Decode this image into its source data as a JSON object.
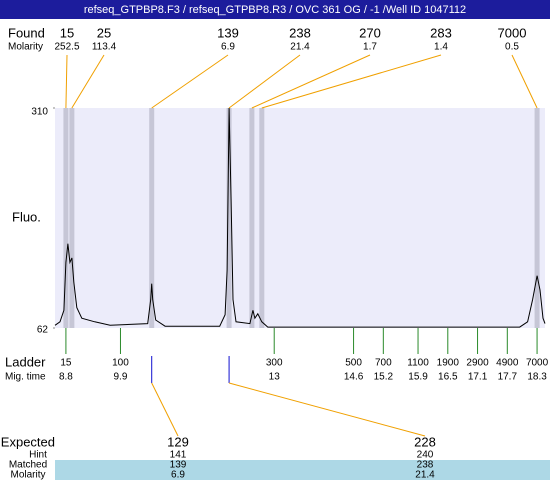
{
  "chart_data": {
    "type": "line",
    "title": "refseq_GTPBP8.F3 / refseq_GTPBP8.R3 / OVC 361 OG / -1 /Well ID 1047112",
    "y_label": "Fluo.",
    "ylim": [
      62,
      310
    ],
    "yticks": [
      62,
      310
    ],
    "xlim": [
      8.58,
      18.46
    ],
    "color": "#000000",
    "trace": {
      "x": [
        8.58,
        8.68,
        8.76,
        8.8,
        8.84,
        8.88,
        8.92,
        8.96,
        9.02,
        9.12,
        9.38,
        9.69,
        10.45,
        10.51,
        10.53,
        10.55,
        10.61,
        10.8,
        11.9,
        12.01,
        12.05,
        12.09,
        12.13,
        12.17,
        12.23,
        12.51,
        12.57,
        12.61,
        12.67,
        12.75,
        12.87,
        17.95,
        18.11,
        18.21,
        18.3,
        18.36,
        18.42,
        18.46
      ],
      "y": [
        65,
        69,
        82,
        136,
        157,
        136,
        141,
        114,
        85,
        73,
        69,
        65,
        67,
        94,
        112,
        94,
        71,
        64,
        64,
        77,
        127,
        310,
        206,
        94,
        69,
        67,
        82,
        73,
        78,
        69,
        63,
        63,
        69,
        94,
        121,
        105,
        73,
        67
      ]
    },
    "found": {
      "label": "Found",
      "molarity_label": "Molarity",
      "sizes": [
        15,
        25,
        139,
        238,
        270,
        283,
        7000
      ],
      "molarity": [
        252.5,
        113.4,
        6.9,
        21.4,
        1.7,
        1.4,
        0.5
      ],
      "mig_time": [
        8.8,
        8.92,
        10.53,
        12.09,
        12.55,
        12.75,
        18.3
      ]
    },
    "ladder": {
      "label": "Ladder",
      "mig_label": "Mig. time",
      "sizes": [
        15,
        100,
        300,
        500,
        700,
        1100,
        1900,
        2900,
        4900,
        7000
      ],
      "mig_time": [
        8.8,
        9.9,
        13,
        14.6,
        15.2,
        15.9,
        16.5,
        17.1,
        17.7,
        18.3
      ]
    },
    "expected": {
      "label": "Expected",
      "hint_label": "Hint",
      "matched_label": "Matched",
      "molarity_label": "Molarity",
      "values": [
        129,
        228
      ],
      "hint": [
        141,
        240
      ],
      "matched": [
        139,
        238
      ],
      "molarity": [
        6.9,
        21.4
      ]
    }
  }
}
